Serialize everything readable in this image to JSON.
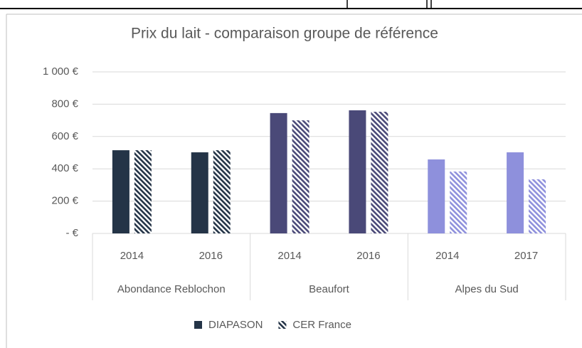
{
  "chart_data": {
    "type": "bar",
    "title": "Prix du lait - comparaison groupe de référence",
    "categories": [
      "2014",
      "2016",
      "2014",
      "2016",
      "2014",
      "2017"
    ],
    "groups": [
      {
        "label": "Abondance Reblochon",
        "color": "#243447"
      },
      {
        "label": "Beaufort",
        "color": "#4a4978"
      },
      {
        "label": "Alpes du Sud",
        "color": "#8e90dc"
      }
    ],
    "series": [
      {
        "name": "DIAPASON",
        "color": "#243447",
        "pattern": "solid",
        "values": [
          515,
          502,
          745,
          762,
          458,
          502
        ]
      },
      {
        "name": "CER France",
        "color": "#243447",
        "pattern": "hatch",
        "values": [
          515,
          515,
          700,
          753,
          383,
          335
        ]
      }
    ],
    "ylim": [
      0,
      1000
    ],
    "yticks": [
      {
        "value": 0,
        "label": "-   €"
      },
      {
        "value": 200,
        "label": "200 €"
      },
      {
        "value": 400,
        "label": "400 €"
      },
      {
        "value": 600,
        "label": "600 €"
      },
      {
        "value": 800,
        "label": "800 €"
      },
      {
        "value": 1000,
        "label": "1 000 €"
      }
    ],
    "grid": true,
    "legend": "bottom"
  }
}
